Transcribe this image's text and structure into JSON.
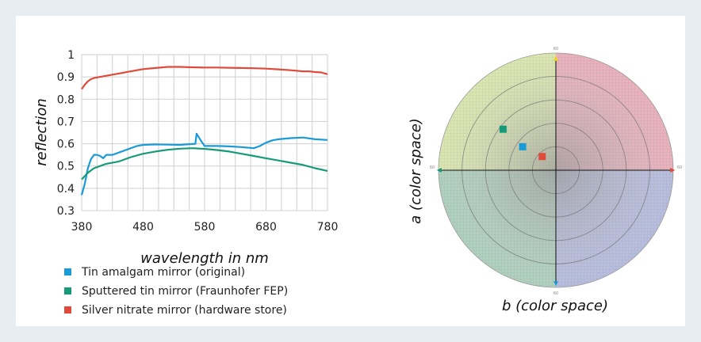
{
  "chart_data": [
    {
      "type": "line",
      "xlabel": "wavelength in nm",
      "ylabel": "reflection",
      "xlim": [
        380,
        780
      ],
      "ylim": [
        0.3,
        1.0
      ],
      "x_ticks": [
        "380",
        "480",
        "580",
        "680",
        "780"
      ],
      "y_ticks": [
        "0.3",
        "0.4",
        "0.5",
        "0.6",
        "0.7",
        "0.8",
        "0.9",
        "1"
      ],
      "grid": true,
      "legend_position": "bottom-left",
      "series": [
        {
          "name": "Tin amalgam mirror (original)",
          "color": "#1a9ad6",
          "x": [
            380,
            385,
            390,
            395,
            400,
            405,
            410,
            415,
            420,
            430,
            440,
            450,
            460,
            470,
            480,
            500,
            520,
            540,
            555,
            565,
            567,
            575,
            580,
            590,
            600,
            620,
            640,
            660,
            670,
            680,
            690,
            700,
            720,
            740,
            760,
            780
          ],
          "y": [
            0.37,
            0.42,
            0.49,
            0.53,
            0.55,
            0.55,
            0.545,
            0.535,
            0.55,
            0.55,
            0.56,
            0.57,
            0.58,
            0.59,
            0.595,
            0.597,
            0.596,
            0.595,
            0.598,
            0.6,
            0.645,
            0.61,
            0.59,
            0.59,
            0.59,
            0.588,
            0.585,
            0.58,
            0.59,
            0.605,
            0.615,
            0.62,
            0.625,
            0.628,
            0.62,
            0.617
          ]
        },
        {
          "name": "Sputtered tin mirror (Fraunhofer FEP)",
          "color": "#169a78",
          "x": [
            380,
            390,
            400,
            410,
            420,
            440,
            460,
            480,
            500,
            520,
            540,
            560,
            580,
            600,
            620,
            640,
            660,
            680,
            700,
            720,
            740,
            760,
            780
          ],
          "y": [
            0.44,
            0.47,
            0.49,
            0.5,
            0.51,
            0.52,
            0.54,
            0.555,
            0.565,
            0.573,
            0.578,
            0.58,
            0.577,
            0.572,
            0.565,
            0.555,
            0.545,
            0.535,
            0.525,
            0.515,
            0.505,
            0.49,
            0.478
          ]
        },
        {
          "name": "Silver nitrate mirror (hardware store)",
          "color": "#e04a3a",
          "x": [
            380,
            385,
            390,
            395,
            400,
            410,
            420,
            440,
            460,
            480,
            500,
            520,
            540,
            560,
            580,
            600,
            620,
            640,
            660,
            680,
            700,
            720,
            740,
            750,
            760,
            770,
            780
          ],
          "y": [
            0.845,
            0.865,
            0.88,
            0.89,
            0.895,
            0.9,
            0.905,
            0.915,
            0.925,
            0.935,
            0.94,
            0.945,
            0.945,
            0.943,
            0.942,
            0.942,
            0.941,
            0.94,
            0.939,
            0.937,
            0.934,
            0.93,
            0.925,
            0.925,
            0.922,
            0.92,
            0.912
          ]
        }
      ]
    },
    {
      "type": "scatter",
      "xlabel": "b (color space)",
      "ylabel": "a (color space)",
      "xlim": [
        -60,
        60
      ],
      "ylim": [
        -60,
        60
      ],
      "grid": true,
      "axis_end_labels": {
        "top": "60",
        "bottom": "60",
        "left": "60",
        "right": "60"
      },
      "points": [
        {
          "b": -27,
          "a": 21,
          "color": "#169a78"
        },
        {
          "b": -17,
          "a": 12,
          "color": "#1a9ad6"
        },
        {
          "b": -7,
          "a": 7,
          "color": "#e04a3a"
        }
      ]
    }
  ]
}
